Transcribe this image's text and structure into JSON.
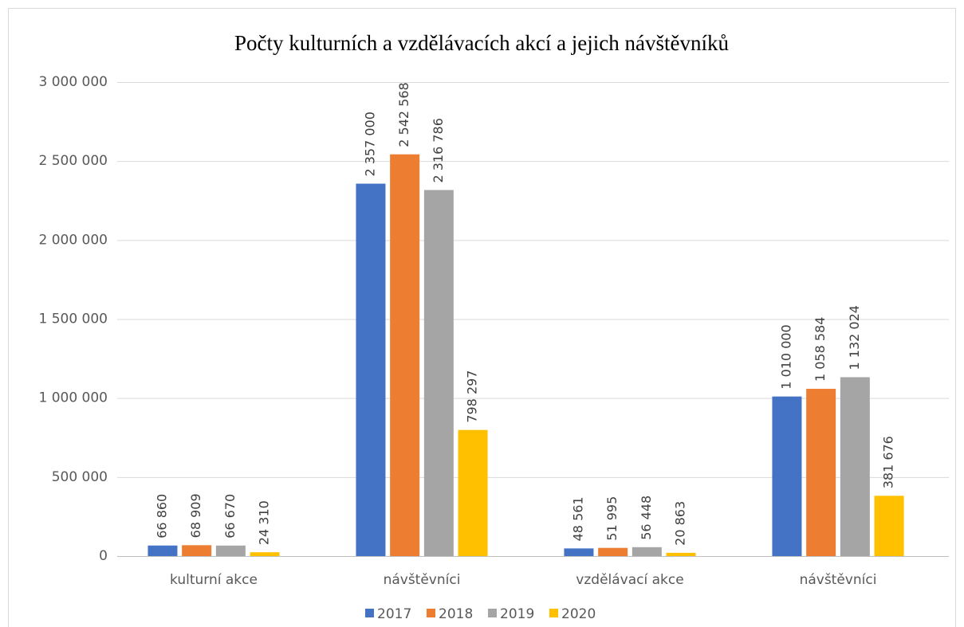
{
  "chart_data": {
    "type": "bar",
    "title": "Počty kulturních a vzdělávacích akcí a jejich návštěvníků",
    "categories": [
      "kulturní akce",
      "návštěvníci",
      "vzdělávací akce",
      "návštěvníci"
    ],
    "series": [
      {
        "name": "2017",
        "color": "#4472c4",
        "values": [
          66860,
          2357000,
          48561,
          1010000
        ],
        "value_labels": [
          "66 860",
          "2 357 000",
          "48 561",
          "1 010 000"
        ]
      },
      {
        "name": "2018",
        "color": "#ed7d31",
        "values": [
          68909,
          2542568,
          51995,
          1058584
        ],
        "value_labels": [
          "68 909",
          "2 542 568",
          "51 995",
          "1 058 584"
        ]
      },
      {
        "name": "2019",
        "color": "#a5a5a5",
        "values": [
          66670,
          2316786,
          56448,
          1132024
        ],
        "value_labels": [
          "66 670",
          "2 316 786",
          "56 448",
          "1 132 024"
        ]
      },
      {
        "name": "2020",
        "color": "#ffc000",
        "values": [
          24310,
          798297,
          20863,
          381676
        ],
        "value_labels": [
          "24 310",
          "798 297",
          "20 863",
          "381 676"
        ]
      }
    ],
    "ylim": [
      0,
      3000000
    ],
    "yticks": [
      0,
      {
        "value": 500000,
        "label": "500 000"
      },
      {
        "value": 1000000,
        "label": "1 000 000"
      },
      {
        "value": 1500000,
        "label": "1 500 000"
      },
      {
        "value": 2000000,
        "label": "2 000 000"
      },
      {
        "value": 2500000,
        "label": "2 500 000"
      },
      {
        "value": 3000000,
        "label": "3 000 000"
      }
    ],
    "grid": true,
    "legend": "bottom"
  }
}
